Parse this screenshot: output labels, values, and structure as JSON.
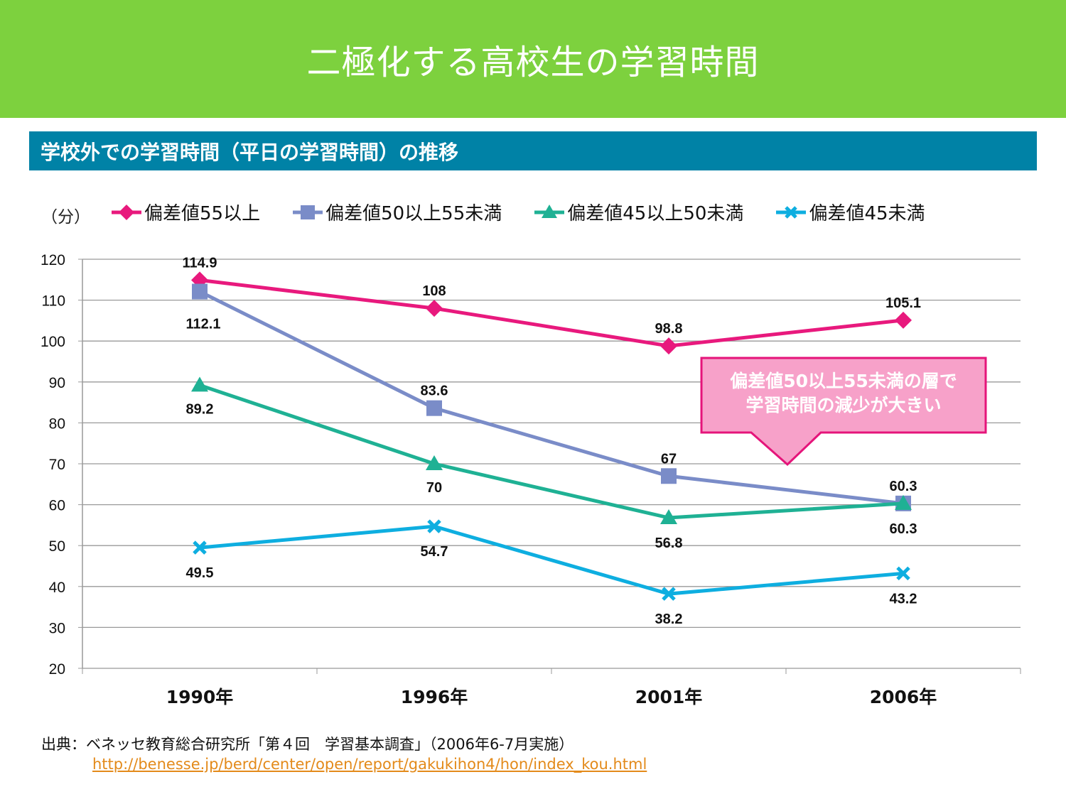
{
  "title": "二極化する高校生の学習時間",
  "subtitle": "学校外での学習時間（平日の学習時間）の推移",
  "callout": [
    "偏差値50以上55未満の層で",
    "学習時間の減少が大きい"
  ],
  "source": "出典：ベネッセ教育総合研究所「第４回　学習基本調査」（2006年6-7月実施）",
  "source_link": "http://benesse.jp/berd/center/open/report/gakukihon4/hon/index_kou.html",
  "chart_data": {
    "type": "line",
    "ylabel": "（分）",
    "categories": [
      "1990年",
      "1996年",
      "2001年",
      "2006年"
    ],
    "ylim": [
      20,
      120
    ],
    "yticks": [
      20,
      30,
      40,
      50,
      60,
      70,
      80,
      90,
      100,
      110,
      120
    ],
    "grid": true,
    "legend": "top",
    "series": [
      {
        "name": "偏差値55以上",
        "values": [
          114.9,
          108,
          98.8,
          105.1
        ],
        "color": "#e8197d",
        "marker": "diamond"
      },
      {
        "name": "偏差値50以上55未満",
        "values": [
          112.1,
          83.6,
          67,
          60.3
        ],
        "color": "#7a8cc8",
        "marker": "square"
      },
      {
        "name": "偏差値45以上50未満",
        "values": [
          89.2,
          70,
          56.8,
          60.3
        ],
        "color": "#1fb194",
        "marker": "triangle"
      },
      {
        "name": "偏差値45未満",
        "values": [
          49.5,
          54.7,
          38.2,
          43.2
        ],
        "color": "#0eaee0",
        "marker": "x"
      }
    ]
  }
}
